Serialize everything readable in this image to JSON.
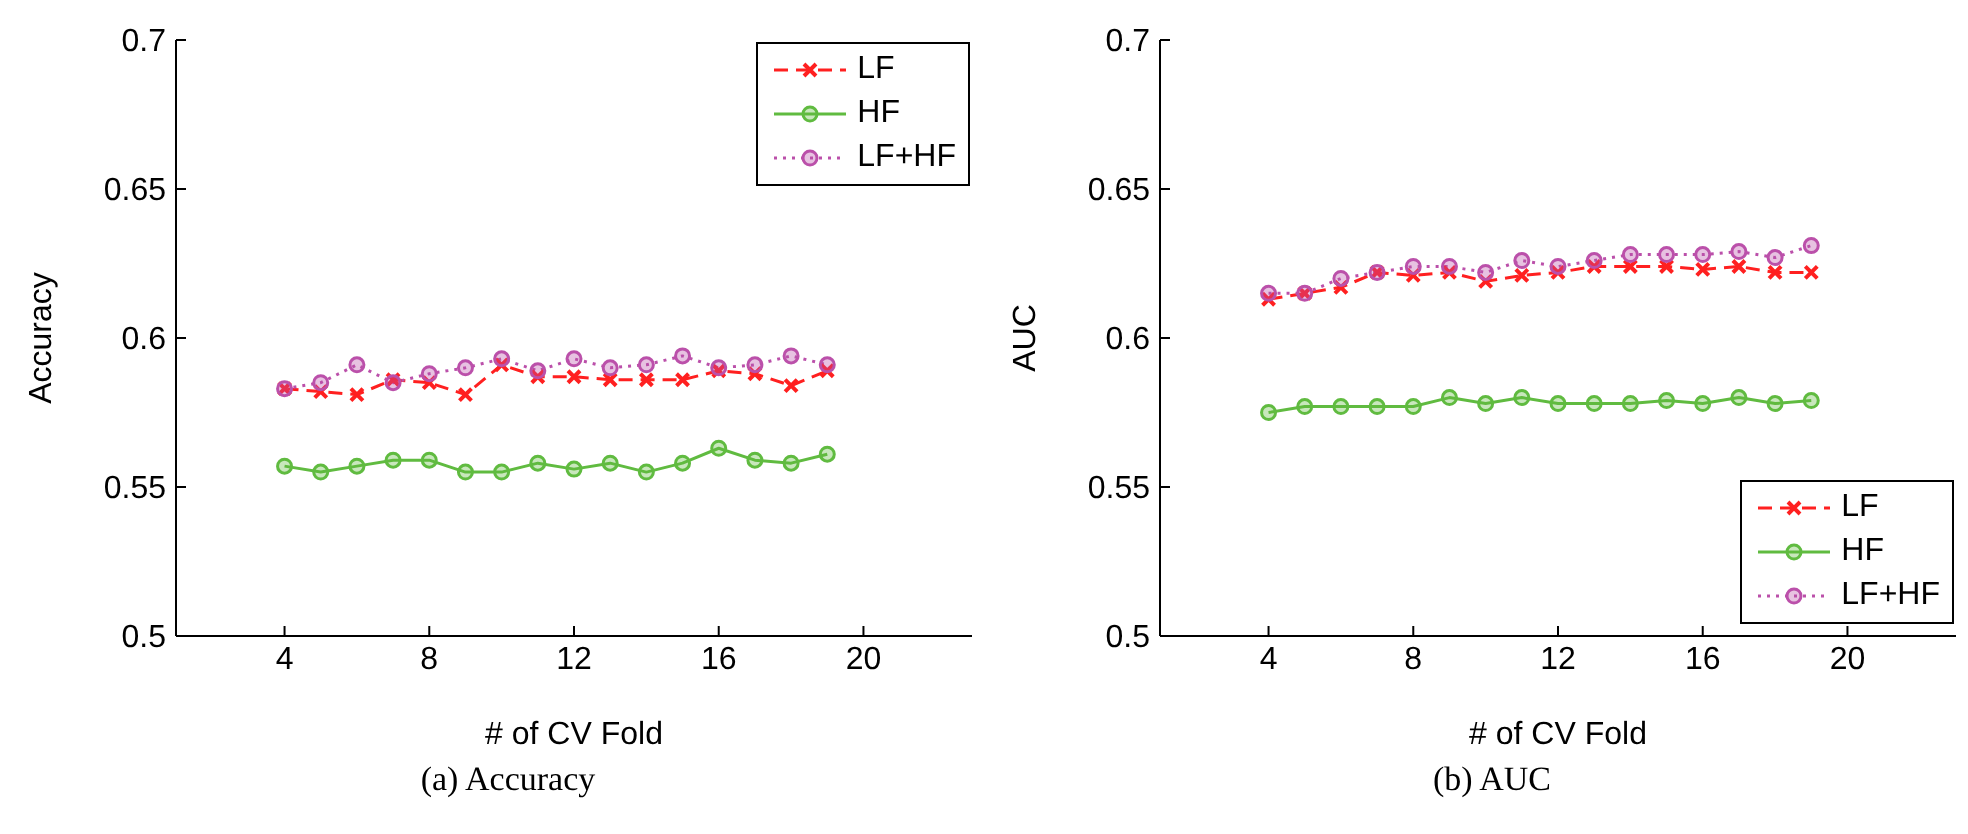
{
  "chart_data": [
    {
      "type": "line",
      "title": "(a) Accuracy",
      "xlabel": "# of CV Fold",
      "ylabel": "Accuracy",
      "x": [
        4,
        5,
        6,
        7,
        8,
        9,
        10,
        11,
        12,
        13,
        14,
        15,
        16,
        17,
        18,
        19
      ],
      "xlim": [
        1,
        23
      ],
      "xticks": [
        4,
        8,
        12,
        16,
        20
      ],
      "ylim": [
        0.5,
        0.7
      ],
      "yticks": [
        0.5,
        0.55,
        0.6,
        0.65,
        0.7
      ],
      "grid": false,
      "legend": "top right",
      "series": [
        {
          "name": "LF",
          "color": "#ff2020",
          "marker": "cross",
          "line_style": "dashed",
          "values": [
            0.583,
            0.582,
            0.581,
            0.586,
            0.585,
            0.581,
            0.591,
            0.587,
            0.587,
            0.586,
            0.586,
            0.586,
            0.589,
            0.588,
            0.584,
            0.589
          ]
        },
        {
          "name": "HF",
          "color": "#60bb40",
          "marker": "circle",
          "line_style": "solid",
          "values": [
            0.557,
            0.555,
            0.557,
            0.559,
            0.559,
            0.555,
            0.555,
            0.558,
            0.556,
            0.558,
            0.555,
            0.558,
            0.563,
            0.559,
            0.558,
            0.561
          ]
        },
        {
          "name": "LF+HF",
          "color": "#bb50aa",
          "marker": "circle",
          "line_style": "dotted",
          "values": [
            0.583,
            0.585,
            0.591,
            0.585,
            0.588,
            0.59,
            0.593,
            0.589,
            0.593,
            0.59,
            0.591,
            0.594,
            0.59,
            0.591,
            0.594,
            0.591
          ]
        }
      ]
    },
    {
      "type": "line",
      "title": "(b) AUC",
      "xlabel": "# of CV Fold",
      "ylabel": "AUC",
      "x": [
        4,
        5,
        6,
        7,
        8,
        9,
        10,
        11,
        12,
        13,
        14,
        15,
        16,
        17,
        18,
        19
      ],
      "xlim": [
        1,
        23
      ],
      "xticks": [
        4,
        8,
        12,
        16,
        20
      ],
      "ylim": [
        0.5,
        0.7
      ],
      "yticks": [
        0.5,
        0.55,
        0.6,
        0.65,
        0.7
      ],
      "grid": false,
      "legend": "bottom right",
      "series": [
        {
          "name": "LF",
          "color": "#ff2020",
          "marker": "cross",
          "line_style": "dashed",
          "values": [
            0.613,
            0.615,
            0.617,
            0.622,
            0.621,
            0.622,
            0.619,
            0.621,
            0.622,
            0.624,
            0.624,
            0.624,
            0.623,
            0.624,
            0.622,
            0.622
          ]
        },
        {
          "name": "HF",
          "color": "#60bb40",
          "marker": "circle",
          "line_style": "solid",
          "values": [
            0.575,
            0.577,
            0.577,
            0.577,
            0.577,
            0.58,
            0.578,
            0.58,
            0.578,
            0.578,
            0.578,
            0.579,
            0.578,
            0.58,
            0.578,
            0.579
          ]
        },
        {
          "name": "LF+HF",
          "color": "#bb50aa",
          "marker": "circle",
          "line_style": "dotted",
          "values": [
            0.615,
            0.615,
            0.62,
            0.622,
            0.624,
            0.624,
            0.622,
            0.626,
            0.624,
            0.626,
            0.628,
            0.628,
            0.628,
            0.629,
            0.627,
            0.631
          ]
        }
      ]
    }
  ]
}
